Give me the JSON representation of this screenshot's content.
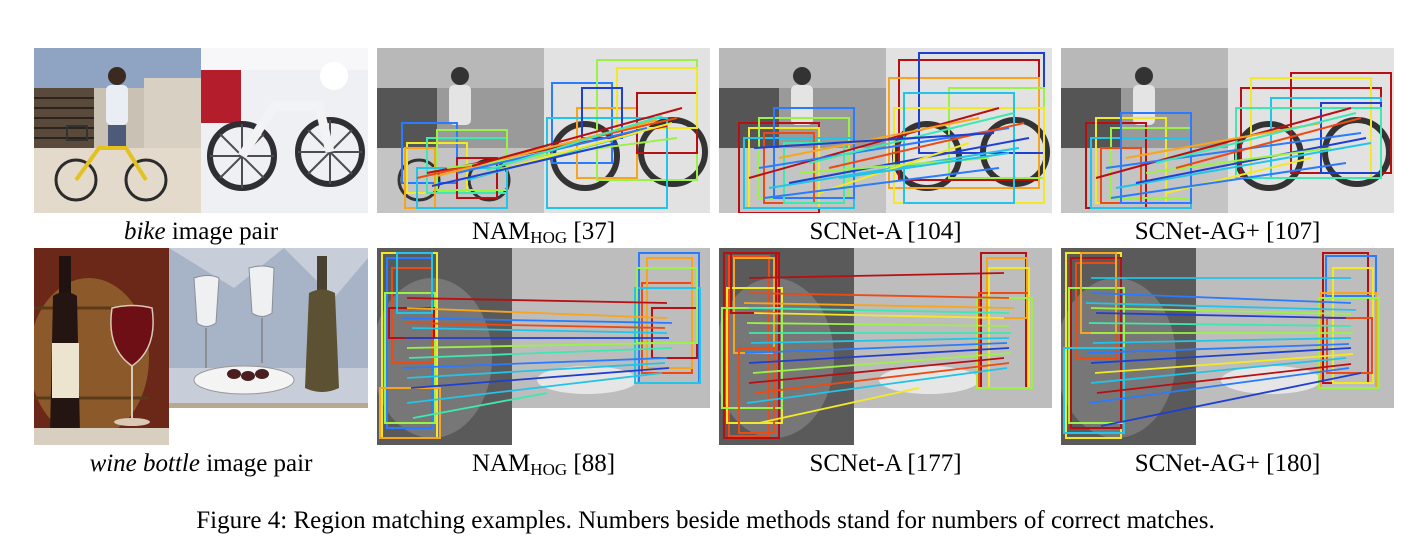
{
  "row1": {
    "pair_label_word": "bike",
    "pair_label_rest": " image pair",
    "methods": [
      {
        "prefix": "NAM",
        "sub": "HOG",
        "count": " [37]"
      },
      {
        "prefix": "SCNet-A",
        "sub": "",
        "count": " [104]"
      },
      {
        "prefix": "SCNet-AG+",
        "sub": "",
        "count": " [107]"
      }
    ]
  },
  "row2": {
    "pair_label_word": "wine bottle",
    "pair_label_rest": " image pair",
    "methods": [
      {
        "prefix": "NAM",
        "sub": "HOG",
        "count": " [88]"
      },
      {
        "prefix": "SCNet-A",
        "sub": "",
        "count": " [177]"
      },
      {
        "prefix": "SCNet-AG+",
        "sub": "",
        "count": " [180]"
      }
    ]
  },
  "figure_caption": "Figure 4: Region matching examples. Numbers beside methods stand for numbers of correct matches.",
  "match_colors": [
    "#1f3fd0",
    "#2a7bff",
    "#22c4e8",
    "#3ee8b0",
    "#9cf04a",
    "#f2e82a",
    "#f7a51e",
    "#ee4a14",
    "#b80f12"
  ]
}
